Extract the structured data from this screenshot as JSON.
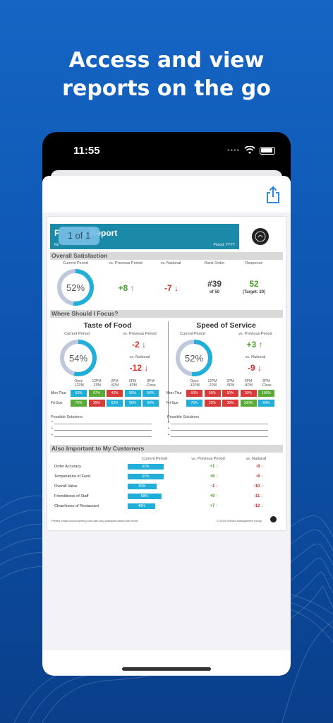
{
  "headline": {
    "line1": "Access and view",
    "line2": "reports on the go"
  },
  "status_bar": {
    "time": "11:55"
  },
  "icons": {
    "share": "share-icon",
    "wifi": "wifi-icon",
    "battery": "battery-icon"
  },
  "pager": {
    "label": "1 of 1"
  },
  "report": {
    "title_visible": "F          e Report",
    "sub_left": "Re",
    "sub_right": "Period, YYYY",
    "overall": {
      "title": "Overall Satisfaction",
      "headers": [
        "Current Period",
        "vs. Previous Period",
        "vs. National",
        "Rank Order",
        "Response"
      ],
      "current": "52%",
      "current_value": 52,
      "vs_previous": "+8",
      "vs_national": "-7",
      "rank": "#39",
      "rank_of": "of 50",
      "response": "52",
      "target": "(Target: 30)"
    },
    "focus": {
      "title": "Where Should I Focus?",
      "panels": [
        {
          "title": "Taste of Food",
          "current_label": "Current Period",
          "current": "54%",
          "current_value": 54,
          "prev_label": "vs. Previous Period",
          "prev": "-2",
          "nat_label": "vs. National",
          "nat": "-12",
          "times": [
            "Open\n-12PM",
            "12PM\n-2PM",
            "2PM\n-5PM",
            "5PM\n-8PM",
            "8PM\n-Close"
          ],
          "rows": [
            {
              "label": "Mon-Thur",
              "cells": [
                "63%",
                "67%",
                "43%",
                "50%",
                "50%"
              ],
              "colors": [
                "#21afd9",
                "#5aaa38",
                "#d93a3a",
                "#21afd9",
                "#21afd9"
              ]
            },
            {
              "label": "Fri-Sun",
              "cells": [
                "75%",
                "25%",
                "63%",
                "50%",
                "50%"
              ],
              "colors": [
                "#5aaa38",
                "#d93a3a",
                "#21afd9",
                "#21afd9",
                "#21afd9"
              ]
            }
          ],
          "solutions_label": "Possible Solutions"
        },
        {
          "title": "Speed of Service",
          "current_label": "Current Period",
          "current": "52%",
          "current_value": 52,
          "prev_label": "vs. Previous Period",
          "prev": "+3",
          "nat_label": "vs. National",
          "nat": "-9",
          "times": [
            "Open\n-12PM",
            "12PM\n-2PM",
            "2PM\n-5PM",
            "5PM\n-8PM",
            "8PM\n-Close"
          ],
          "rows": [
            {
              "label": "Mon-Thur",
              "cells": [
                "50%",
                "50%",
                "50%",
                "50%",
                "100%"
              ],
              "colors": [
                "#d93a3a",
                "#d93a3a",
                "#d93a3a",
                "#d93a3a",
                "#5aaa38"
              ]
            },
            {
              "label": "Fri-Sun",
              "cells": [
                "75%",
                "25%",
                "38%",
                "100%",
                "50%"
              ],
              "colors": [
                "#21afd9",
                "#d93a3a",
                "#d93a3a",
                "#5aaa38",
                "#21afd9"
              ]
            }
          ],
          "solutions_label": "Possible Solutions"
        }
      ]
    },
    "customers": {
      "title": "Also Important to My Customers",
      "headers": [
        "Current Period",
        "vs. Previous Period",
        "vs. National"
      ],
      "rows": [
        {
          "label": "Order Accuracy",
          "current": "62%",
          "current_value": 62,
          "prev": "+1",
          "nat": "-8"
        },
        {
          "label": "Temperature of Food",
          "current": "62%",
          "current_value": 62,
          "prev": "+8",
          "nat": "-6"
        },
        {
          "label": "Overall Value",
          "current": "50%",
          "current_value": 50,
          "prev": "-1",
          "nat": "-10"
        },
        {
          "label": "Friendliness of Staff",
          "current": "58%",
          "current_value": 58,
          "prev": "+9",
          "nat": "-11"
        },
        {
          "label": "Cleanliness of Restaurant",
          "current": "48%",
          "current_value": 48,
          "prev": "+7",
          "nat": "-12"
        }
      ]
    },
    "footer_left": "Please email xxxxxxx@smg.com with any questions about this report.",
    "footer_right": "© 2024 Service Management Group"
  },
  "colors": {
    "teal": "#1a8aa8",
    "blue": "#21afd9",
    "green": "#5aaa38",
    "red": "#d93a3a",
    "background": "#1565c4"
  }
}
